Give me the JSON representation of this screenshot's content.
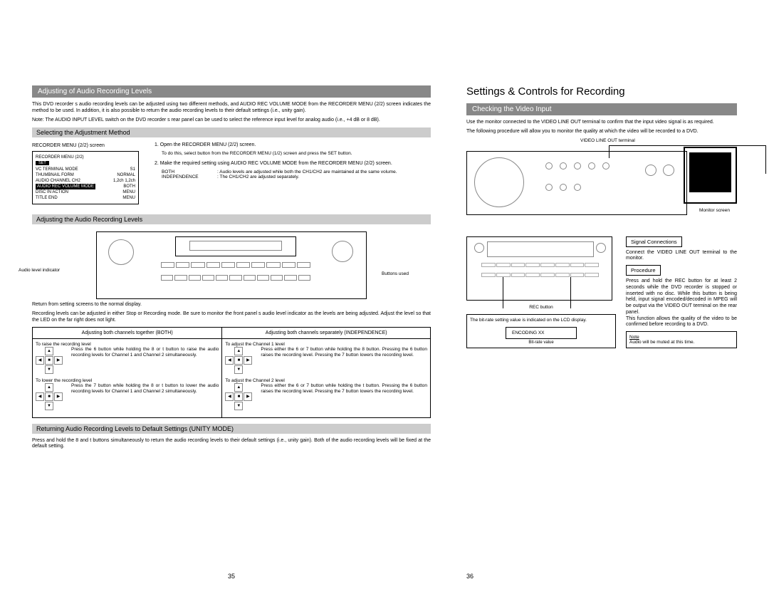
{
  "left": {
    "section_title": "Adjusting of Audio Recording Levels",
    "intro": "This DVD recorder s audio recording levels can be adjusted using two different methods, and AUDIO REC VOLUME MODE from the RECORDER MENU (2/2) screen indicates the method to be used. In addition, it is also possible to return the audio recording levels to their default settings (i.e., unity gain).",
    "note": "Note: The AUDIO INPUT LEVEL switch on the DVD recorder s rear panel can be used to select the reference input level for analog audio (i.e., +4 dB or  8 dB).",
    "sub1": "Selecting the Adjustment Method",
    "menu_caption": "RECORDER MENU (2/2) screen",
    "menu_title": "RECORDER MENU (2/2)",
    "menu_set": "SET",
    "menu_rows": [
      {
        "l": "VC TERMINAL MODE",
        "r": "S1"
      },
      {
        "l": "THUMBNAIL FORM",
        "r": "NORMAL"
      },
      {
        "l": "AUDIO CHANNEL CH2",
        "r": "1,2ch   1,2ch"
      },
      {
        "l": "AUDIO REC VOLUME MODE",
        "r": "BOTH",
        "inv": true
      },
      {
        "l": "DISC IN ACTION",
        "r": "MENU"
      },
      {
        "l": "TITLE END",
        "r": "MENU"
      }
    ],
    "step1": "1. Open the RECORDER MENU (2/2) screen.",
    "step1_sub": "To do this, select    button from the RECORDER MENU (1/2) screen and press the SET button.",
    "step2": "2. Make the required setting using AUDIO REC VOLUME MODE from the RECORDER MENU (2/2) screen.",
    "step2_both_l": "BOTH",
    "step2_both_r": ": Audio levels are adjusted while both the CH1/CH2 are maintained at the same volume.",
    "step2_ind_l": "INDEPENDENCE",
    "step2_ind_r": ": The CH1/CH2 are adjusted separately.",
    "sub2": "Adjusting the Audio Recording Levels",
    "dev_left_label": "Audio level indicator",
    "dev_right_label": "Buttons used",
    "post_text1": "Return from setting screens to the normal display.",
    "post_text2": "Recording levels can be adjusted in either Stop or Recording mode. Be sure to monitor the front panel s audio level indicator as the levels are being adjusted. Adjust the level so that the LED on the far right does not light.",
    "tbl_hdr_l": "Adjusting both channels together (BOTH)",
    "tbl_hdr_r": "Adjusting both channels separately (INDEPENDENCE)",
    "raise_l": "To raise the recording level",
    "raise_r": "To adjust the Channel 1 level",
    "raise_l_text": "Press the 6  button while holding the 8  or t  button to raise the audio recording levels for Channel 1 and Channel 2 simultaneously.",
    "raise_r_text": "Press either the 6  or 7  button while holding the 8  button.\nPressing the 6  button raises the recording level.\nPressing the 7  button lowers the recording level.",
    "lower_l": "To lower the recording level",
    "lower_r": "To adjust the Channel 2 level",
    "lower_l_text": "Press the 7  button while holding the 8  or t  button to lower the audio recording levels for Channel 1 and Channel 2 simultaneously.",
    "lower_r_text": "Press either the 6  or 7  button while holding the t  button.\nPressing the 6  button raises the recording level.\nPressing the 7  button lowers the recording level.",
    "sub3": "Returning Audio Recording Levels to Default Settings (UNITY MODE)",
    "unity_text": "Press and hold the 8  and t  buttons simultaneously to return the audio recording levels to their default settings (i.e., unity gain). Both of the audio recording levels will be fixed at the default setting.",
    "page_num": "35"
  },
  "right": {
    "main_title": "Settings & Controls for Recording",
    "section_title": "Checking the Video Input",
    "intro1": "Use the monitor connected to the VIDEO LINE OUT terminal to confirm that the input video signal is as required.",
    "intro2": "The following procedure will allow you to monitor the quality at which the video will be recorded to a DVD.",
    "label_vlo": "VIDEO LINE OUT terminal",
    "label_monitor": "Monitor screen",
    "label_rec": "REC button",
    "bitrate_text": "The bit-rate setting value is indicated on the LCD display.",
    "enc_label": "ENCODING   XX",
    "bitrate_value": "Bit-rate value",
    "sig_title": "Signal Connections",
    "sig_text": "Connect the VIDEO LINE OUT terminal to the monitor.",
    "proc_title": "Procedure",
    "proc_text": "Press and hold the REC button for at least 2 seconds while the DVD recorder is stopped or inserted with no disc. While this button is being held, input signal encoded/decoded in MPEG will be output via the VIDEO OUT terminal on the rear panel.\nThis function allows the quality of the video to be confirmed before recording to a DVD.",
    "note_title": "Note",
    "note_text": "Audio will be muted at this time.",
    "page_num": "36"
  }
}
